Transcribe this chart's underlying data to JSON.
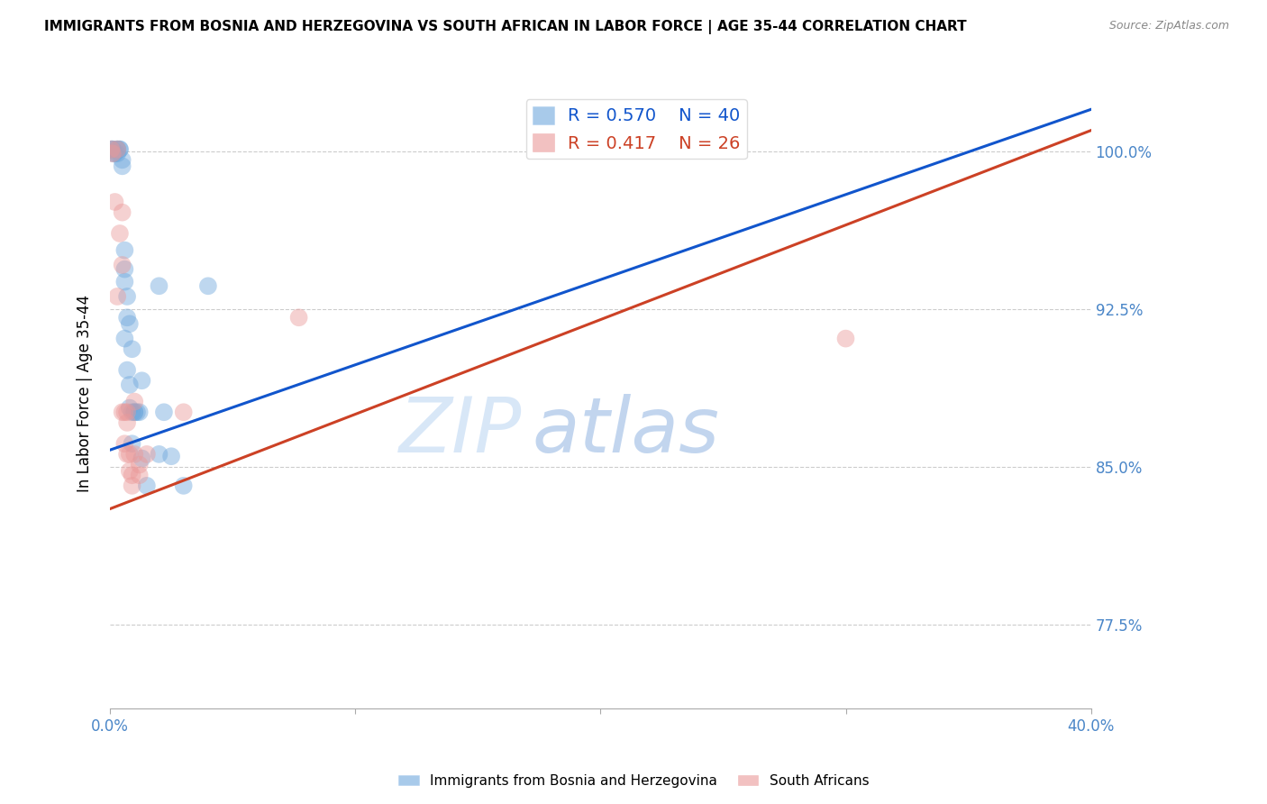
{
  "title": "IMMIGRANTS FROM BOSNIA AND HERZEGOVINA VS SOUTH AFRICAN IN LABOR FORCE | AGE 35-44 CORRELATION CHART",
  "source": "Source: ZipAtlas.com",
  "ylabel": "In Labor Force | Age 35-44",
  "yticks": [
    0.775,
    0.85,
    0.925,
    1.0
  ],
  "ytick_labels": [
    "77.5%",
    "85.0%",
    "92.5%",
    "100.0%"
  ],
  "xmin": 0.0,
  "xmax": 0.4,
  "ymin": 0.735,
  "ymax": 1.035,
  "blue_R": 0.57,
  "blue_N": 40,
  "pink_R": 0.417,
  "pink_N": 26,
  "legend_label_blue": "Immigrants from Bosnia and Herzegovina",
  "legend_label_pink": "South Africans",
  "watermark_zip": "ZIP",
  "watermark_atlas": "atlas",
  "blue_color": "#6fa8dc",
  "pink_color": "#ea9999",
  "blue_line_color": "#1155cc",
  "pink_line_color": "#cc4125",
  "axis_color": "#4a86c8",
  "blue_line": [
    [
      0.0,
      0.858
    ],
    [
      0.4,
      1.02
    ]
  ],
  "pink_line": [
    [
      0.0,
      0.83
    ],
    [
      0.4,
      1.01
    ]
  ],
  "blue_scatter": [
    [
      0.0005,
      1.001
    ],
    [
      0.001,
      1.001
    ],
    [
      0.001,
      1.001
    ],
    [
      0.0015,
      0.999
    ],
    [
      0.002,
      0.999
    ],
    [
      0.003,
      1.001
    ],
    [
      0.003,
      1.001
    ],
    [
      0.003,
      0.999
    ],
    [
      0.004,
      1.001
    ],
    [
      0.004,
      1.001
    ],
    [
      0.005,
      0.996
    ],
    [
      0.005,
      0.993
    ],
    [
      0.006,
      0.953
    ],
    [
      0.006,
      0.944
    ],
    [
      0.006,
      0.938
    ],
    [
      0.007,
      0.931
    ],
    [
      0.007,
      0.921
    ],
    [
      0.008,
      0.918
    ],
    [
      0.008,
      0.889
    ],
    [
      0.008,
      0.878
    ],
    [
      0.009,
      0.906
    ],
    [
      0.009,
      0.876
    ],
    [
      0.009,
      0.861
    ],
    [
      0.01,
      0.876
    ],
    [
      0.011,
      0.876
    ],
    [
      0.012,
      0.876
    ],
    [
      0.013,
      0.891
    ],
    [
      0.013,
      0.854
    ],
    [
      0.015,
      0.841
    ],
    [
      0.02,
      0.936
    ],
    [
      0.02,
      0.856
    ],
    [
      0.022,
      0.876
    ],
    [
      0.025,
      0.855
    ],
    [
      0.03,
      0.841
    ],
    [
      0.04,
      0.936
    ],
    [
      0.006,
      0.911
    ],
    [
      0.007,
      0.896
    ],
    [
      0.01,
      0.876
    ],
    [
      0.2,
      1.001
    ],
    [
      0.25,
      1.001
    ]
  ],
  "pink_scatter": [
    [
      0.0005,
      1.001
    ],
    [
      0.001,
      0.999
    ],
    [
      0.002,
      0.976
    ],
    [
      0.003,
      1.001
    ],
    [
      0.003,
      0.931
    ],
    [
      0.004,
      0.961
    ],
    [
      0.005,
      0.971
    ],
    [
      0.005,
      0.946
    ],
    [
      0.005,
      0.876
    ],
    [
      0.006,
      0.876
    ],
    [
      0.006,
      0.861
    ],
    [
      0.007,
      0.876
    ],
    [
      0.007,
      0.871
    ],
    [
      0.007,
      0.856
    ],
    [
      0.008,
      0.856
    ],
    [
      0.008,
      0.848
    ],
    [
      0.009,
      0.846
    ],
    [
      0.009,
      0.841
    ],
    [
      0.01,
      0.881
    ],
    [
      0.01,
      0.856
    ],
    [
      0.012,
      0.851
    ],
    [
      0.012,
      0.846
    ],
    [
      0.015,
      0.856
    ],
    [
      0.03,
      0.876
    ],
    [
      0.077,
      0.921
    ],
    [
      0.3,
      0.911
    ]
  ]
}
